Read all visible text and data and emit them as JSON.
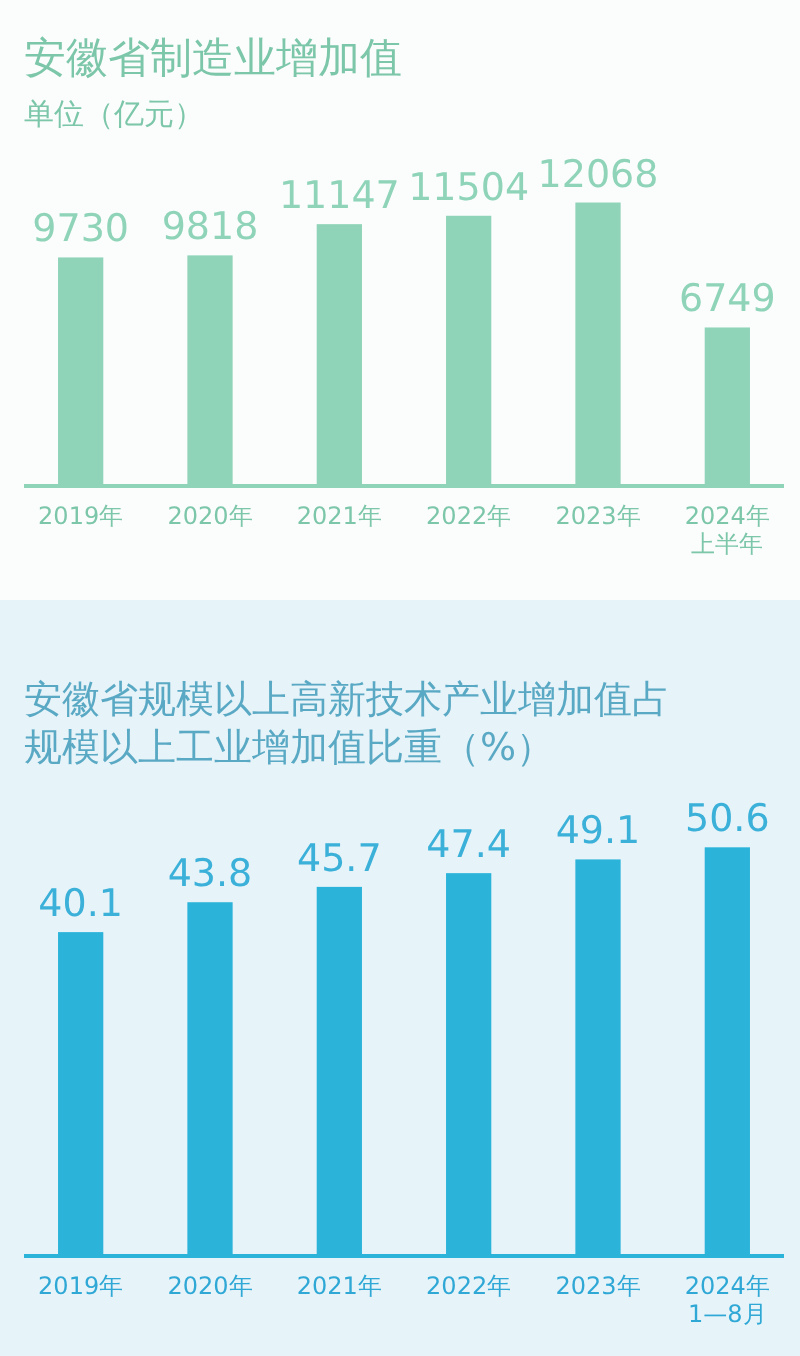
{
  "chart_data": [
    {
      "type": "bar",
      "title": "安徽省制造业增加值",
      "subtitle": "单位（亿元）",
      "categories": [
        "2019年",
        "2020年",
        "2021年",
        "2022年",
        "2023年",
        "2024年上半年"
      ],
      "values": [
        9730,
        9818,
        11147,
        11504,
        12068,
        6749
      ],
      "color": "#8fd4b9",
      "data_labels": true
    },
    {
      "type": "bar",
      "title": "安徽省规模以上高新技术产业增加值占规模以上工业增加值比重（%）",
      "categories": [
        "2019年",
        "2020年",
        "2021年",
        "2022年",
        "2023年",
        "2024年1—8月"
      ],
      "values": [
        40.1,
        43.8,
        45.7,
        47.4,
        49.1,
        50.6
      ],
      "color": "#2bb3da",
      "data_labels": true
    }
  ]
}
